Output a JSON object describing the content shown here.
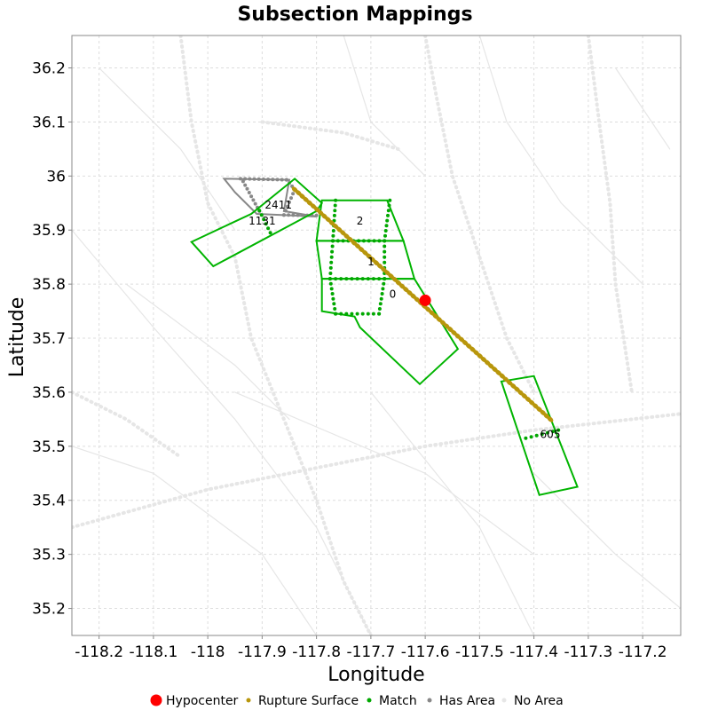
{
  "chart_data": {
    "type": "scatter",
    "title": "Subsection Mappings",
    "xlabel": "Longitude",
    "ylabel": "Latitude",
    "xlim": [
      -118.25,
      -117.13
    ],
    "ylim": [
      35.15,
      36.26
    ],
    "xticks": [
      -118.2,
      -118.1,
      -118,
      -117.9,
      -117.8,
      -117.7,
      -117.6,
      -117.5,
      -117.4,
      -117.3,
      -117.2
    ],
    "xtick_labels": [
      "-118.2",
      "-118.1",
      "-118",
      "-117.9",
      "-117.8",
      "-117.7",
      "-117.6",
      "-117.5",
      "-117.4",
      "-117.3",
      "-117.2"
    ],
    "yticks": [
      35.2,
      35.3,
      35.4,
      35.5,
      35.6,
      35.7,
      35.8,
      35.9,
      36,
      36.1,
      36.2
    ],
    "ytick_labels": [
      "35.2",
      "35.3",
      "35.4",
      "35.5",
      "35.6",
      "35.7",
      "35.8",
      "35.9",
      "36",
      "36.1",
      "36.2"
    ],
    "grid": true,
    "legend_placement": "bottom",
    "legend": [
      {
        "label": "Hypocenter",
        "color": "#ff0000",
        "marker": "large-dot"
      },
      {
        "label": "Rupture Surface",
        "color": "#b8960c",
        "marker": "dot"
      },
      {
        "label": "Match",
        "color": "#00a800",
        "marker": "dot"
      },
      {
        "label": "Has Area",
        "color": "#888888",
        "marker": "dot"
      },
      {
        "label": "No Area",
        "color": "#e6e6e6",
        "marker": "dot"
      }
    ],
    "colors": {
      "hypocenter": "#ff0000",
      "rupture": "#b8960c",
      "match": "#00a800",
      "match_outline": "#00b400",
      "has_area": "#888888",
      "no_area": "#e6e6e6",
      "grid": "#dddddd"
    },
    "hypocenter": {
      "x": -117.6,
      "y": 35.77
    },
    "rupture_surface": {
      "start": [
        -117.84,
        35.975
      ],
      "end": [
        -117.37,
        35.55
      ],
      "points": 70
    },
    "match_sections": [
      {
        "label": "0",
        "label_at": [
          -117.66,
          35.775
        ],
        "polygon": [
          [
            -117.79,
            35.81
          ],
          [
            -117.62,
            35.81
          ],
          [
            -117.54,
            35.68
          ],
          [
            -117.61,
            35.615
          ],
          [
            -117.72,
            35.72
          ],
          [
            -117.73,
            35.74
          ],
          [
            -117.79,
            35.75
          ]
        ],
        "trace": [
          [
            -117.775,
            35.81
          ],
          [
            -117.765,
            35.745
          ],
          [
            -117.685,
            35.745
          ],
          [
            -117.675,
            35.81
          ]
        ]
      },
      {
        "label": "1",
        "label_at": [
          -117.7,
          35.835
        ],
        "polygon": [
          [
            -117.8,
            35.88
          ],
          [
            -117.64,
            35.88
          ],
          [
            -117.62,
            35.81
          ],
          [
            -117.79,
            35.81
          ]
        ],
        "trace": [
          [
            -117.77,
            35.88
          ],
          [
            -117.775,
            35.81
          ],
          [
            -117.675,
            35.81
          ],
          [
            -117.675,
            35.88
          ]
        ]
      },
      {
        "label": "2",
        "label_at": [
          -117.72,
          35.91
        ],
        "polygon": [
          [
            -117.79,
            35.955
          ],
          [
            -117.67,
            35.955
          ],
          [
            -117.64,
            35.88
          ],
          [
            -117.8,
            35.88
          ]
        ],
        "trace": [
          [
            -117.765,
            35.955
          ],
          [
            -117.77,
            35.88
          ],
          [
            -117.675,
            35.88
          ],
          [
            -117.665,
            35.955
          ]
        ]
      },
      {
        "label": "1131",
        "label_at": [
          -117.9,
          35.91
        ],
        "polygon": [
          [
            -118.03,
            35.878
          ],
          [
            -117.92,
            35.93
          ],
          [
            -117.84,
            35.995
          ],
          [
            -117.79,
            35.95
          ],
          [
            -117.8,
            35.935
          ],
          [
            -117.99,
            35.833
          ]
        ],
        "trace": [
          [
            -117.905,
            35.936
          ],
          [
            -117.885,
            35.895
          ]
        ]
      },
      {
        "label": "605",
        "label_at": [
          -117.37,
          35.515
        ],
        "polygon": [
          [
            -117.46,
            35.62
          ],
          [
            -117.4,
            35.63
          ],
          [
            -117.32,
            35.425
          ],
          [
            -117.39,
            35.41
          ]
        ],
        "trace": [
          [
            -117.415,
            35.515
          ],
          [
            -117.355,
            35.53
          ]
        ]
      }
    ],
    "has_area_sections": [
      {
        "label": "2411",
        "label_at": [
          -117.87,
          35.94
        ],
        "polygon": [
          [
            -117.97,
            35.995
          ],
          [
            -117.85,
            35.993
          ],
          [
            -117.86,
            35.935
          ],
          [
            -117.8,
            35.925
          ],
          [
            -117.91,
            35.93
          ],
          [
            -117.95,
            35.97
          ]
        ],
        "trace": [
          [
            -117.94,
            35.995
          ],
          [
            -117.855,
            35.993
          ],
          [
            -117.84,
            35.975
          ],
          [
            -117.86,
            35.928
          ],
          [
            -117.8,
            35.927
          ]
        ]
      },
      {
        "label": "",
        "polygon": [],
        "trace": [
          [
            -117.935,
            35.99
          ],
          [
            -117.905,
            35.935
          ]
        ]
      }
    ]
  }
}
